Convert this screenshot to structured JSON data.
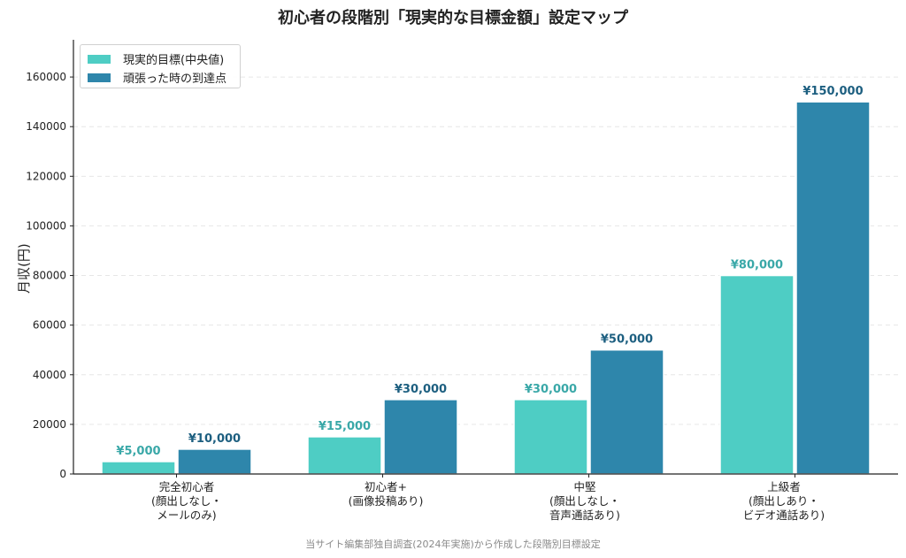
{
  "chart_data": {
    "type": "bar",
    "title": "初心者の段階別「現実的な目標金額」設定マップ",
    "ylabel": "月収(円)",
    "xlabel": "",
    "ylim": [
      0,
      175000
    ],
    "yticks": [
      0,
      20000,
      40000,
      60000,
      80000,
      100000,
      120000,
      140000,
      160000
    ],
    "grid": "horizontal dashed",
    "legend_position": "top-left",
    "categories": [
      "完全初心者\n(顔出しなし・\nメールのみ)",
      "初心者+\n(画像投稿あり)",
      "中堅\n(顔出しなし・\n音声通話あり)",
      "上級者\n(顔出しあり・\nビデオ通話あり)"
    ],
    "series": [
      {
        "name": "現実的目標(中央値)",
        "color": "#4ecdc4",
        "label_color": "#3aa8a8",
        "values": [
          5000,
          15000,
          30000,
          80000
        ],
        "labels": [
          "¥5,000",
          "¥15,000",
          "¥30,000",
          "¥80,000"
        ]
      },
      {
        "name": "頑張った時の到達点",
        "color": "#2e86ab",
        "label_color": "#1d5f80",
        "values": [
          10000,
          30000,
          50000,
          150000
        ],
        "labels": [
          "¥10,000",
          "¥30,000",
          "¥50,000",
          "¥150,000"
        ]
      }
    ],
    "caption": "当サイト編集部独自調査(2024年実施)から作成した段階別目標設定"
  }
}
